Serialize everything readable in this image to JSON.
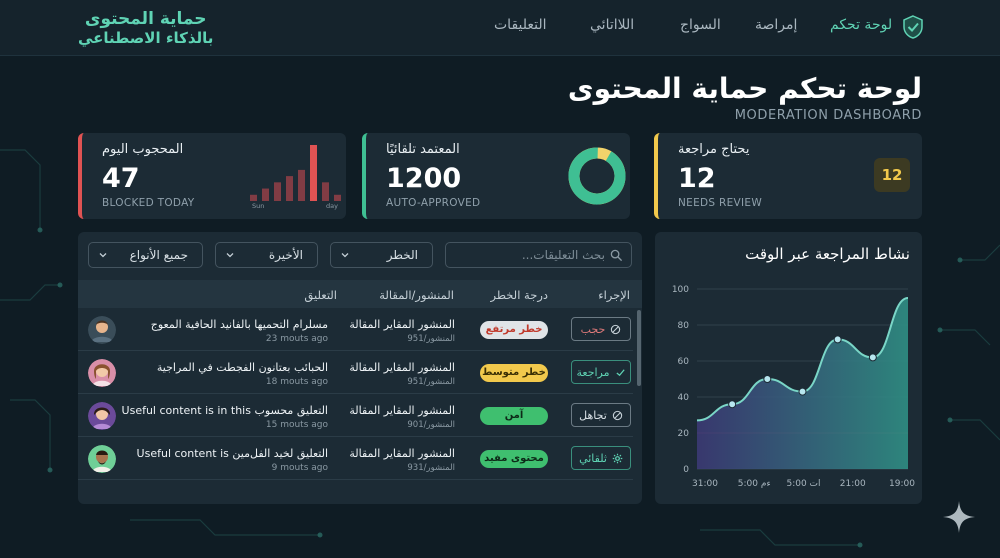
{
  "header": {
    "brand_line1": "حماية المحتوى",
    "brand_line2": "بالذكاء الاصطناعي",
    "nav": [
      {
        "label": "لوحة تحكم",
        "active": true
      },
      {
        "label": "إمراصة",
        "active": false
      },
      {
        "label": "السواج",
        "active": false
      },
      {
        "label": "اللااتائي",
        "active": false
      },
      {
        "label": "التعليقات",
        "active": false
      }
    ]
  },
  "page": {
    "title": "لوحة تحكم حماية المحتوى",
    "subtitle": "MODERATION DASHBOARD"
  },
  "cards": {
    "blocked": {
      "title": "المحجوب اليوم",
      "value": "47",
      "label_en": "BLOCKED TODAY",
      "color": "#e05353",
      "spark_left": "Sun",
      "spark_right": "day",
      "spark_values": [
        1,
        2,
        3,
        4,
        5,
        9,
        3,
        1
      ]
    },
    "approved": {
      "title": "المعتمد تلقائيًا",
      "value": "1200",
      "label_en": "AUTO-APPROVED",
      "color": "#3fbf93",
      "donut_fraction": 0.92
    },
    "review": {
      "title": "يحتاج مراجعة",
      "value": "12",
      "label_en": "NEEDS REVIEW",
      "color": "#f2c94c",
      "badge": "12"
    }
  },
  "filters": {
    "search_placeholder": "بحث التعليقات...",
    "risk": "الخطر",
    "recent": "الأخيرة",
    "types": "جميع الأنواع"
  },
  "table": {
    "headers": {
      "comment": "التعليق",
      "post": "المنشور/المقالة",
      "risk": "درجة الخطر",
      "action": "الإجراء"
    },
    "rows": [
      {
        "comment": "مسلرام التحميها بالفانيد الحافية المعوج",
        "time": "23 mouts ago",
        "post": "المنشور المقاير المقالة",
        "post_id": "المنشور/951",
        "risk": "خطر مرتفع",
        "risk_bg": "#e0e4e7",
        "risk_fg": "#c0392b",
        "action": "حجب",
        "action_color": "#e07a7a",
        "avatar_color": "#e7b58d"
      },
      {
        "comment": "الحبائب بعتانون الفجطت في المراجية",
        "time": "18 mouts ago",
        "post": "المنشور المقاير المقالة",
        "post_id": "المنشور/951",
        "risk": "خطر متوسط",
        "risk_bg": "#f2c94c",
        "risk_fg": "#3a2f05",
        "action": "مراجعة",
        "action_color": "#5fd3b4",
        "avatar_color": "#e8a5b8"
      },
      {
        "comment": "التعليق محسوب Useful content is in this",
        "time": "15 mouts ago",
        "post": "المنشور المقاير المقالة",
        "post_id": "المنشور/901",
        "risk": "آمن",
        "risk_bg": "#3fbf6f",
        "risk_fg": "#0d2a18",
        "action": "تجاهل",
        "action_color": "#b8c4cc",
        "avatar_color": "#b48ad6"
      },
      {
        "comment": "التعليق لخيد الفل‌مين Useful content is",
        "time": "9 mouts ago",
        "post": "المنشور المقاير المقالة",
        "post_id": "المنشور/931",
        "risk": "محتوى مفيد",
        "risk_bg": "#3fbf6f",
        "risk_fg": "#0d2a18",
        "action": "ثلقائي",
        "action_color": "#5fd3b4",
        "avatar_color": "#6fcf97"
      }
    ]
  },
  "chart_data": {
    "type": "area",
    "title": "نشاط المراجعة عبر الوقت",
    "x_ticks": [
      "31:00",
      "ءم 5:00",
      "ات 5:00",
      "21:00",
      "19:00"
    ],
    "y_ticks": [
      0,
      20,
      40,
      60,
      80,
      100
    ],
    "ylim": [
      0,
      100
    ],
    "points": [
      {
        "x": 0,
        "y": 27
      },
      {
        "x": 1,
        "y": 36
      },
      {
        "x": 2,
        "y": 50
      },
      {
        "x": 3,
        "y": 43
      },
      {
        "x": 4,
        "y": 72
      },
      {
        "x": 5,
        "y": 62
      },
      {
        "x": 6,
        "y": 95
      }
    ],
    "xlim": [
      0,
      6
    ],
    "grid": true,
    "line_color": "#7ad6c7"
  },
  "colors": {
    "accent": "#5fd3b4",
    "panel": "#1c2b35",
    "background": "#0f1c24"
  }
}
